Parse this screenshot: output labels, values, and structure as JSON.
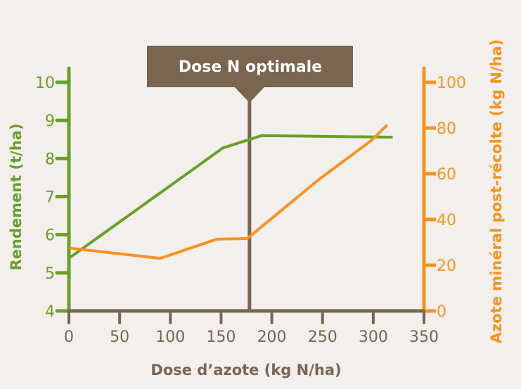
{
  "colors": {
    "background": "#f2efec",
    "yield": "#6a9f2a",
    "nitrogen": "#f7931e",
    "axis": "#7a6550"
  },
  "chart_data": {
    "type": "line",
    "title": "",
    "xlabel": "Dose d’azote (kg N/ha)",
    "ylabel": "Rendement (t/ha)",
    "y2label": "Azote minéral post-récolte (kg N/ha)",
    "xlim": [
      0,
      350
    ],
    "ylim": [
      4,
      10
    ],
    "y2lim": [
      0,
      100
    ],
    "xticks": [
      "0",
      "50",
      "100",
      "150",
      "200",
      "250",
      "300",
      "350"
    ],
    "yticks": [
      "4",
      "5",
      "6",
      "7",
      "8",
      "9",
      "10"
    ],
    "y2ticks": [
      "0",
      "20",
      "40",
      "60",
      "80",
      "100"
    ],
    "grid": false,
    "series": [
      {
        "axis": "left",
        "color": "#6a9f2a",
        "x": [
          2,
          152,
          190,
          318
        ],
        "y": [
          5.42,
          8.28,
          8.6,
          8.56
        ]
      },
      {
        "axis": "right",
        "color": "#f7931e",
        "x": [
          2,
          90,
          146,
          176,
          245,
          298,
          313
        ],
        "y": [
          27.4,
          23,
          31.4,
          31.7,
          57,
          74.5,
          81
        ]
      }
    ],
    "annotation": {
      "label": "Dose N optimale",
      "x": 178
    }
  }
}
